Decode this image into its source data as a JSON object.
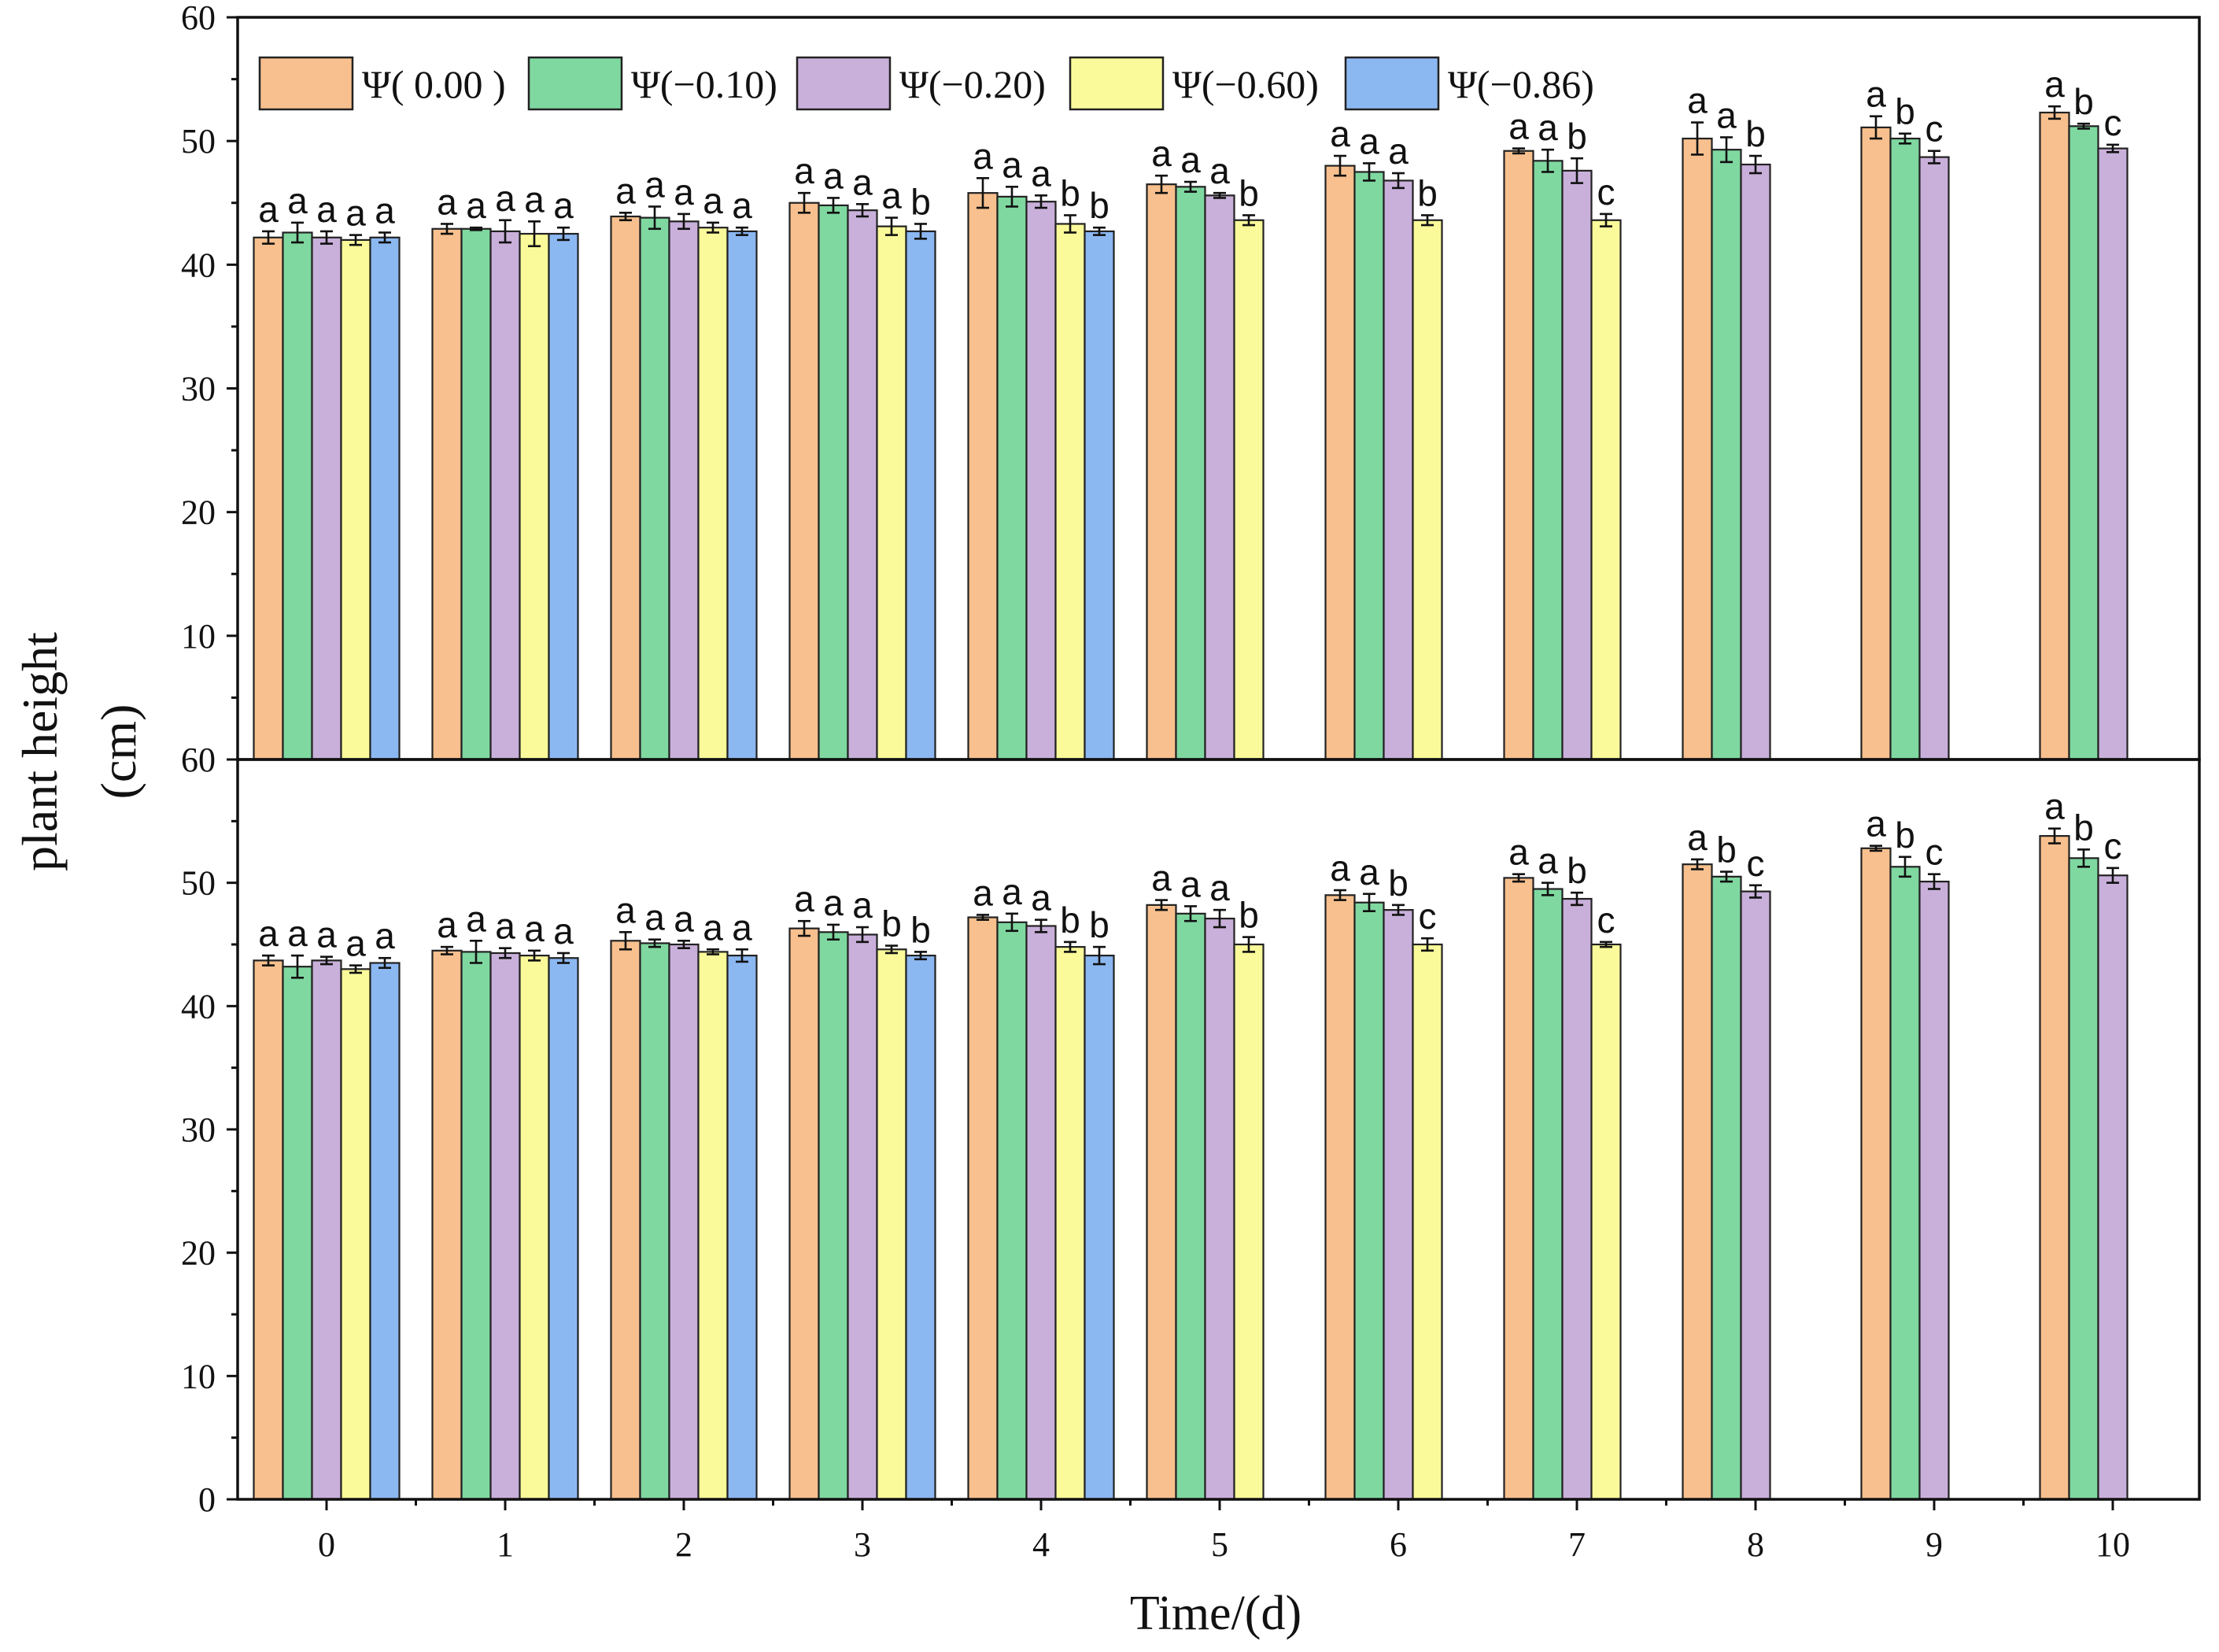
{
  "chart_data": {
    "type": "bar",
    "layout": "two stacked panels sharing x-axis",
    "xlabel": "Time/(d)",
    "ylabel_line1": "plant height",
    "ylabel_line2": "(cm)",
    "categories": [
      "0",
      "1",
      "2",
      "3",
      "4",
      "5",
      "6",
      "7",
      "8",
      "9",
      "10"
    ],
    "legend_position": "top-left",
    "series_meta": [
      {
        "name": "Ψ( 0.00 )",
        "color": "#F8C08E"
      },
      {
        "name": "Ψ(−0.10)",
        "color": "#7FD8A0"
      },
      {
        "name": "Ψ(−0.20)",
        "color": "#C9B0DA"
      },
      {
        "name": "Ψ(−0.60)",
        "color": "#FAFA9A"
      },
      {
        "name": "Ψ(−0.86)",
        "color": "#8CB8F2"
      }
    ],
    "panels": [
      {
        "name": "top",
        "ylim": [
          0,
          60
        ],
        "yticks": [
          10,
          20,
          30,
          40,
          50,
          60
        ],
        "series": [
          {
            "values": [
              42.2,
              42.9,
              43.9,
              45.0,
              45.8,
              46.5,
              48.0,
              49.2,
              50.2,
              51.1,
              52.3
            ],
            "errors": [
              0.5,
              0.4,
              0.3,
              0.8,
              1.2,
              0.7,
              0.8,
              0.2,
              1.3,
              0.9,
              0.5
            ],
            "labels": [
              "a",
              "a",
              "a",
              "a",
              "a",
              "a",
              "a",
              "a",
              "a",
              "a",
              "a"
            ]
          },
          {
            "values": [
              42.6,
              42.9,
              43.8,
              44.8,
              45.5,
              46.3,
              47.5,
              48.4,
              49.3,
              50.2,
              51.2
            ],
            "errors": [
              0.8,
              0.1,
              0.9,
              0.6,
              0.8,
              0.4,
              0.7,
              0.9,
              1.0,
              0.4,
              0.2
            ],
            "labels": [
              "a",
              "a",
              "a",
              "a",
              "a",
              "a",
              "a",
              "a",
              "a",
              "b",
              "b"
            ]
          },
          {
            "values": [
              42.2,
              42.7,
              43.5,
              44.4,
              45.1,
              45.6,
              46.8,
              47.6,
              48.1,
              48.7,
              49.4
            ],
            "errors": [
              0.5,
              0.9,
              0.6,
              0.5,
              0.5,
              0.2,
              0.6,
              1.0,
              0.7,
              0.5,
              0.3
            ],
            "labels": [
              "a",
              "a",
              "a",
              "a",
              "a",
              "a",
              "a",
              "b",
              "b",
              "c",
              "c"
            ]
          },
          {
            "values": [
              42.0,
              42.5,
              43.0,
              43.1,
              43.3,
              43.6,
              43.6,
              43.6,
              null,
              null,
              null
            ],
            "errors": [
              0.4,
              1.0,
              0.4,
              0.7,
              0.7,
              0.4,
              0.4,
              0.5,
              null,
              null,
              null
            ],
            "labels": [
              "a",
              "a",
              "a",
              "a",
              "b",
              "b",
              "b",
              "c",
              null,
              null,
              null
            ]
          },
          {
            "values": [
              42.2,
              42.5,
              42.7,
              42.7,
              42.7,
              null,
              null,
              null,
              null,
              null,
              null
            ],
            "errors": [
              0.4,
              0.5,
              0.3,
              0.6,
              0.3,
              null,
              null,
              null,
              null,
              null,
              null
            ],
            "labels": [
              "a",
              "a",
              "a",
              "b",
              "b",
              null,
              null,
              null,
              null,
              null,
              null
            ]
          }
        ]
      },
      {
        "name": "bottom",
        "ylim": [
          0,
          60
        ],
        "yticks": [
          0,
          10,
          20,
          30,
          40,
          50,
          60
        ],
        "series": [
          {
            "values": [
              43.7,
              44.5,
              45.3,
              46.3,
              47.2,
              48.2,
              49.0,
              50.4,
              51.5,
              52.8,
              53.8
            ],
            "errors": [
              0.4,
              0.3,
              0.7,
              0.6,
              0.2,
              0.4,
              0.4,
              0.3,
              0.4,
              0.2,
              0.6
            ],
            "labels": [
              "a",
              "a",
              "a",
              "a",
              "a",
              "a",
              "a",
              "a",
              "a",
              "a",
              "a"
            ]
          },
          {
            "values": [
              43.2,
              44.4,
              45.1,
              46.0,
              46.8,
              47.5,
              48.4,
              49.5,
              50.5,
              51.3,
              52.0
            ],
            "errors": [
              0.9,
              0.9,
              0.3,
              0.6,
              0.7,
              0.6,
              0.7,
              0.5,
              0.4,
              0.8,
              0.7
            ],
            "labels": [
              "a",
              "a",
              "a",
              "a",
              "a",
              "a",
              "a",
              "a",
              "b",
              "b",
              "b"
            ]
          },
          {
            "values": [
              43.7,
              44.3,
              45.0,
              45.8,
              46.5,
              47.1,
              47.8,
              48.7,
              49.3,
              50.1,
              50.6
            ],
            "errors": [
              0.3,
              0.4,
              0.3,
              0.6,
              0.5,
              0.7,
              0.4,
              0.5,
              0.5,
              0.6,
              0.6
            ],
            "labels": [
              "a",
              "a",
              "a",
              "a",
              "a",
              "a",
              "b",
              "b",
              "c",
              "c",
              "c"
            ]
          },
          {
            "values": [
              43.0,
              44.1,
              44.4,
              44.6,
              44.8,
              45.0,
              45.0,
              45.0,
              null,
              null,
              null
            ],
            "errors": [
              0.3,
              0.4,
              0.2,
              0.3,
              0.4,
              0.6,
              0.5,
              0.2,
              null,
              null,
              null
            ],
            "labels": [
              "a",
              "a",
              "a",
              "b",
              "b",
              "b",
              "c",
              "c",
              null,
              null,
              null
            ]
          },
          {
            "values": [
              43.5,
              43.9,
              44.1,
              44.1,
              44.1,
              null,
              null,
              null,
              null,
              null,
              null
            ],
            "errors": [
              0.4,
              0.4,
              0.5,
              0.3,
              0.7,
              null,
              null,
              null,
              null,
              null,
              null
            ],
            "labels": [
              "a",
              "a",
              "a",
              "b",
              "b",
              null,
              null,
              null,
              null,
              null,
              null
            ]
          }
        ]
      }
    ]
  }
}
